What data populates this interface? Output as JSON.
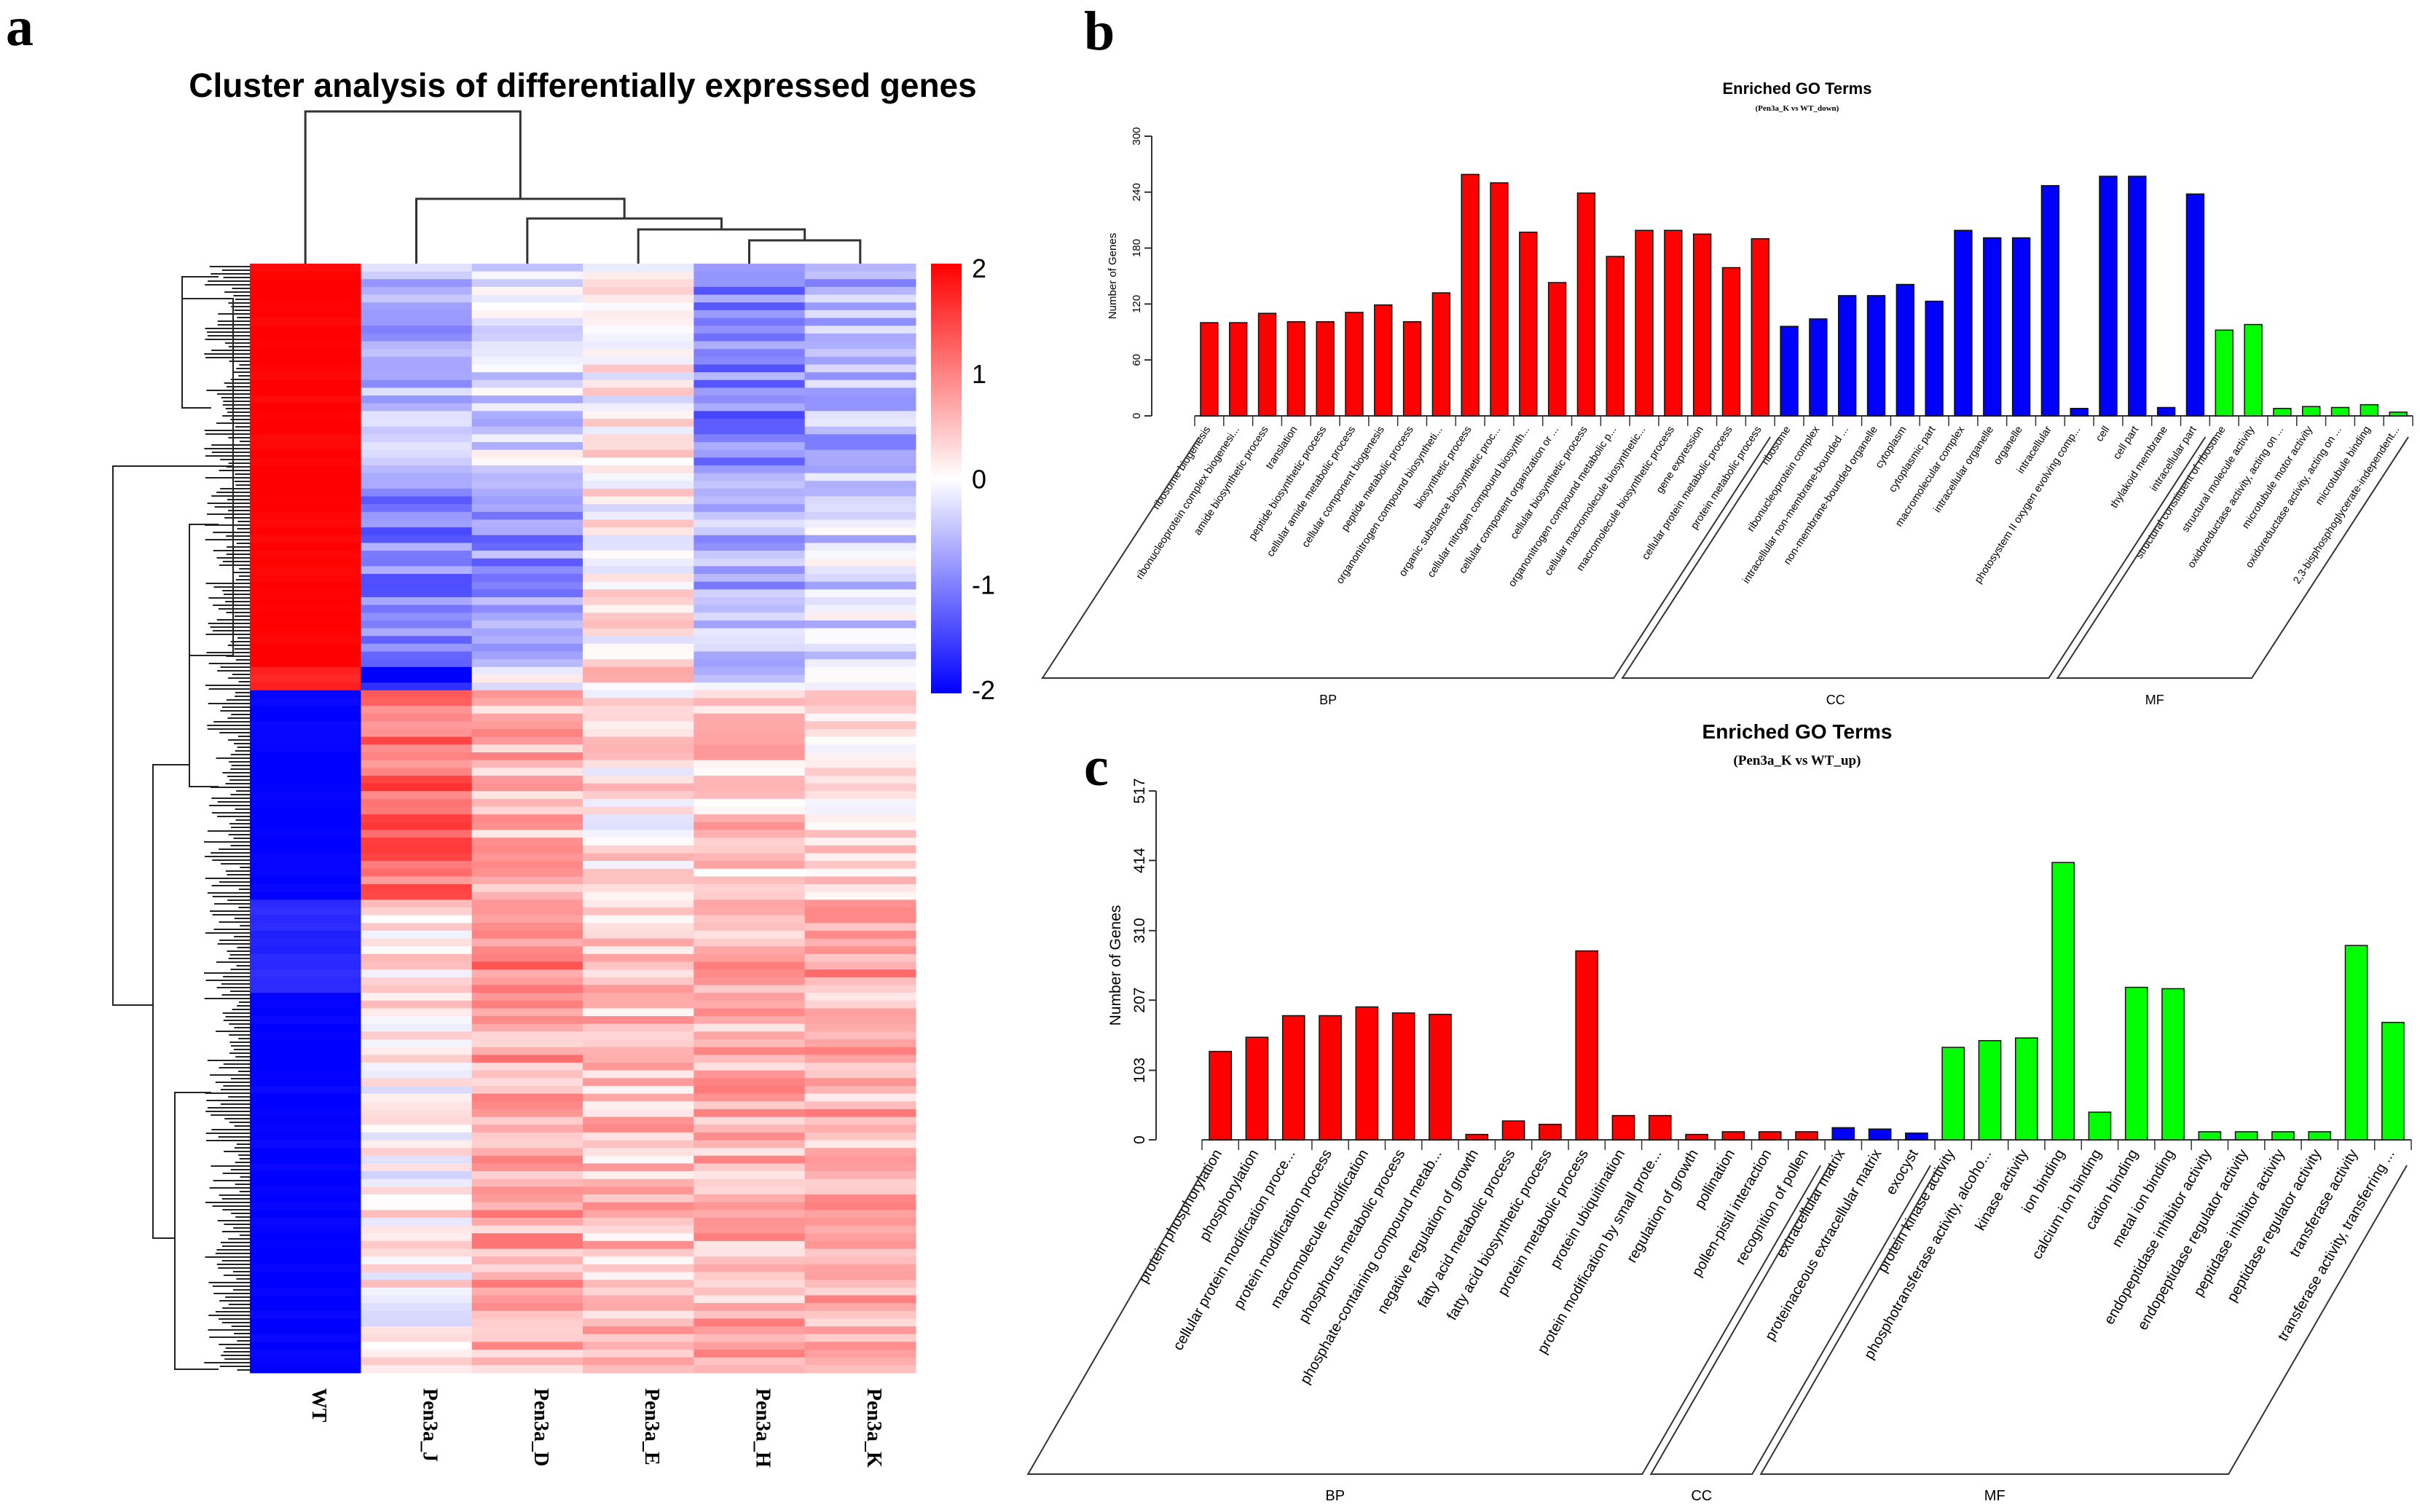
{
  "panel_labels": {
    "a": "a",
    "b": "b",
    "c": "c"
  },
  "chart_data": [
    {
      "type": "heatmap",
      "title": "Cluster analysis of differentially expressed genes",
      "columns": [
        "WT",
        "Pen3a_J",
        "Pen3a_D",
        "Pen3a_E",
        "Pen3a_H",
        "Pen3a_K"
      ],
      "color_scale": {
        "min": -2,
        "max": 2,
        "low": "#0000ff",
        "mid": "#ffffff",
        "high": "#ff0000",
        "ticks": [
          "2",
          "1",
          "0",
          "-1",
          "-2"
        ]
      },
      "row_clusters": [
        {
          "n_rows": 28,
          "mean": [
            2.0,
            -0.6,
            -0.3,
            0.1,
            -1.0,
            -0.6
          ]
        },
        {
          "n_rows": 24,
          "mean": [
            2.0,
            -1.0,
            -0.9,
            0.1,
            -0.6,
            -0.3
          ]
        },
        {
          "n_rows": 3,
          "mean": [
            1.7,
            -1.8,
            0.0,
            0.3,
            -0.2,
            0.3
          ]
        },
        {
          "n_rows": 27,
          "mean": [
            -2.0,
            1.2,
            0.6,
            0.2,
            0.4,
            0.3
          ]
        },
        {
          "n_rows": 12,
          "mean": [
            -1.7,
            0.3,
            1.0,
            0.4,
            0.6,
            0.8
          ]
        },
        {
          "n_rows": 49,
          "mean": [
            -2.0,
            0.1,
            0.7,
            0.5,
            0.6,
            0.6
          ]
        }
      ]
    },
    {
      "type": "bar",
      "title": "Enriched GO Terms",
      "subtitle": "(Pen3a_K vs WT_down)",
      "ylabel": "Number of Genes",
      "ylim": [
        0,
        300
      ],
      "yticks": [
        0,
        60,
        120,
        180,
        240,
        300
      ],
      "groups": [
        {
          "name": "BP",
          "color": "#ff0000",
          "categories": [
            "ribosome biogenesis",
            "ribonucleoprotein complex biogenesi...",
            "amide biosynthetic process",
            "translation",
            "peptide biosynthetic process",
            "cellular amide metabolic process",
            "cellular component biogenesis",
            "peptide metabolic process",
            "organonitrogen compound biosyntheti...",
            "biosynthetic process",
            "organic substance biosynthetic proc...",
            "cellular nitrogen compound biosynth...",
            "cellular component organization or ...",
            "cellular biosynthetic process",
            "organonitrogen compound metabolic p...",
            "cellular macromolecule biosynthetic...",
            "macromolecule biosynthetic process",
            "gene expression",
            "cellular protein metabolic process",
            "protein metabolic process"
          ],
          "values": [
            100,
            100,
            110,
            101,
            101,
            111,
            119,
            101,
            132,
            259,
            250,
            197,
            143,
            239,
            171,
            199,
            199,
            195,
            159,
            190
          ]
        },
        {
          "name": "CC",
          "color": "#0000ff",
          "categories": [
            "ribosome",
            "ribonucleoprotein complex",
            "intracellular non-membrane-bounded ...",
            "non-membrane-bounded organelle",
            "cytoplasm",
            "cytoplasmic part",
            "macromolecular complex",
            "intracellular organelle",
            "organelle",
            "intracellular",
            "photosystem II oxygen evolving comp...",
            "cell",
            "cell part",
            "thylakoid membrane",
            "intracellular part"
          ],
          "values": [
            96,
            104,
            129,
            129,
            141,
            123,
            199,
            191,
            191,
            247,
            8,
            257,
            257,
            9,
            238
          ]
        },
        {
          "name": "MF",
          "color": "#00ff00",
          "categories": [
            "structural constituent of ribosome",
            "structural molecule activity",
            "oxidoreductase activity, acting on ...",
            "microtubule motor activity",
            "oxidoreductase activity, acting on ...",
            "microtubule binding",
            "2,3-bisphosphoglycerate-independent..."
          ],
          "values": [
            92,
            98,
            8,
            10,
            9,
            12,
            4
          ]
        }
      ]
    },
    {
      "type": "bar",
      "title": "Enriched GO Terms",
      "subtitle": "(Pen3a_K vs WT_up)",
      "ylabel": "Number of Genes",
      "ylim": [
        0,
        517
      ],
      "yticks": [
        0,
        103,
        207,
        310,
        414,
        517
      ],
      "groups": [
        {
          "name": "BP",
          "color": "#ff0000",
          "categories": [
            "protein phosphorylation",
            "phosphorylation",
            "cellular protein modification proce...",
            "protein modification process",
            "macromolecule modification",
            "phosphorus metabolic process",
            "phosphate-containing compound metab...",
            "negative regulation of growth",
            "fatty acid metabolic process",
            "fatty acid biosynthetic process",
            "protein metabolic process",
            "protein ubiquitination",
            "protein modification by small prote...",
            "regulation of growth",
            "pollination",
            "pollen-pistil interaction",
            "recognition of pollen"
          ],
          "values": [
            131,
            152,
            184,
            184,
            197,
            188,
            186,
            8,
            28,
            23,
            280,
            36,
            36,
            8,
            12,
            12,
            12
          ]
        },
        {
          "name": "CC",
          "color": "#0000ff",
          "categories": [
            "extracellular matrix",
            "proteinaceous extracellular matrix",
            "exocyst"
          ],
          "values": [
            18,
            16,
            10
          ]
        },
        {
          "name": "MF",
          "color": "#00ff00",
          "categories": [
            "protein kinase activity",
            "phosphotransferase activity, alcoho...",
            "kinase activity",
            "ion binding",
            "calcium ion binding",
            "cation binding",
            "metal ion binding",
            "endopeptidase inhibitor activity",
            "endopeptidase regulator activity",
            "peptidase inhibitor activity",
            "peptidase regulator activity",
            "transferase activity",
            "transferase activity, transferring ..."
          ],
          "values": [
            137,
            147,
            151,
            411,
            41,
            226,
            224,
            12,
            12,
            12,
            12,
            288,
            174
          ]
        }
      ]
    }
  ]
}
